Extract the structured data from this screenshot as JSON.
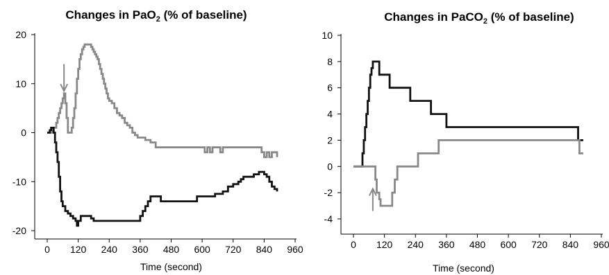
{
  "chart_data": [
    {
      "type": "line",
      "title": "Changes in PaO2 (% of baseline)",
      "title_main": "Changes in PaO",
      "title_sub": "2",
      "title_rest": " (% of baseline)",
      "xlabel": "Time (second)",
      "ylabel": "",
      "xlim": [
        0,
        960
      ],
      "ylim": [
        -20,
        20
      ],
      "xticks": [
        0,
        120,
        240,
        360,
        480,
        600,
        720,
        840,
        960
      ],
      "yticks": [
        -20,
        -10,
        0,
        10,
        20
      ],
      "grid": false,
      "annotation": {
        "type": "arrow",
        "direction": "down",
        "x": 65,
        "y_from": 14,
        "y_to": 8.5
      },
      "series": [
        {
          "color": "#888888",
          "x": [
            0,
            20,
            20,
            30,
            35,
            40,
            45,
            50,
            55,
            60,
            65,
            70,
            75,
            80,
            90,
            95,
            100,
            105,
            110,
            115,
            120,
            125,
            130,
            135,
            140,
            145,
            160,
            170,
            175,
            180,
            185,
            190,
            195,
            200,
            205,
            210,
            215,
            220,
            225,
            230,
            235,
            240,
            250,
            260,
            270,
            280,
            290,
            300,
            310,
            320,
            330,
            340,
            350,
            380,
            400,
            420,
            600,
            610,
            620,
            630,
            640,
            660,
            670,
            680,
            700,
            820,
            830,
            840,
            850,
            860,
            870,
            880,
            890
          ],
          "y": [
            0,
            0,
            1,
            1,
            2,
            3,
            4,
            5,
            6,
            7,
            8,
            6,
            3,
            0,
            0,
            1,
            3,
            5,
            8,
            11,
            13,
            15,
            16,
            17,
            17.5,
            18,
            18,
            17.5,
            17,
            16.5,
            16,
            15.5,
            15,
            14,
            13,
            12,
            11,
            10,
            9,
            8,
            7,
            6.5,
            6,
            5,
            4,
            3.5,
            3,
            2,
            1.5,
            1,
            0,
            -0.5,
            -1,
            -1.5,
            -2,
            -3,
            -3,
            -4,
            -3,
            -4,
            -3,
            -3,
            -4,
            -3,
            -3,
            -3,
            -4,
            -5,
            -4,
            -5,
            -4,
            -4,
            -5
          ],
          "width": 2.8
        },
        {
          "color": "#111111",
          "x": [
            0,
            10,
            15,
            20,
            25,
            30,
            35,
            40,
            45,
            50,
            55,
            60,
            70,
            80,
            90,
            100,
            110,
            115,
            120,
            125,
            130,
            140,
            150,
            160,
            170,
            180,
            190,
            200,
            210,
            360,
            370,
            380,
            390,
            400,
            420,
            440,
            460,
            480,
            500,
            530,
            550,
            580,
            600,
            650,
            680,
            700,
            720,
            740,
            750,
            760,
            800,
            820,
            830,
            840,
            850,
            860,
            870,
            880,
            890
          ],
          "y": [
            0,
            0.5,
            1,
            1,
            0,
            -2,
            -4,
            -6,
            -9,
            -12,
            -14,
            -15,
            -16,
            -16.5,
            -17,
            -17.5,
            -18,
            -19,
            -18,
            -18,
            -17,
            -17,
            -17,
            -17,
            -17.5,
            -18,
            -18,
            -18,
            -18,
            -17,
            -16,
            -15,
            -14,
            -13,
            -13,
            -14,
            -14,
            -14,
            -14,
            -14,
            -14,
            -13,
            -13,
            -12.5,
            -12,
            -11,
            -10.5,
            -10,
            -9.5,
            -9,
            -8.5,
            -8,
            -8,
            -8.5,
            -9,
            -10,
            -11,
            -11.5,
            -12
          ],
          "width": 2.8
        }
      ]
    },
    {
      "type": "line",
      "title": "Changes in PaCO2 (% of baseline)",
      "title_main": "Changes in PaCO",
      "title_sub": "2",
      "title_rest": " (% of baseline)",
      "xlabel": "Time (second)",
      "ylabel": "",
      "xlim": [
        0,
        960
      ],
      "ylim": [
        -4,
        10
      ],
      "xticks": [
        0,
        120,
        240,
        360,
        480,
        600,
        720,
        840,
        960
      ],
      "yticks": [
        -4,
        -2,
        0,
        2,
        4,
        6,
        8,
        10
      ],
      "grid": false,
      "annotation": {
        "type": "arrow",
        "direction": "up",
        "x": 75,
        "y_from": -3.4,
        "y_to": -1.7
      },
      "series": [
        {
          "color": "#111111",
          "x": [
            0,
            30,
            35,
            40,
            45,
            50,
            55,
            60,
            65,
            70,
            75,
            80,
            90,
            100,
            130,
            140,
            180,
            220,
            290,
            300,
            310,
            360,
            370,
            860,
            870,
            875,
            880,
            890
          ],
          "y": [
            0,
            0,
            1,
            2,
            3,
            4,
            5,
            6,
            7,
            7.5,
            8,
            8,
            8,
            7,
            7,
            6,
            6,
            5,
            5,
            4,
            4,
            3,
            3,
            3,
            2,
            2,
            2,
            2
          ],
          "width": 2.8
        },
        {
          "color": "#888888",
          "x": [
            0,
            30,
            80,
            85,
            90,
            95,
            100,
            105,
            110,
            130,
            150,
            160,
            170,
            190,
            210,
            240,
            250,
            260,
            320,
            330,
            870,
            875,
            880,
            890
          ],
          "y": [
            0,
            0,
            0,
            -1,
            -2,
            -2,
            -2.5,
            -3,
            -3,
            -3,
            -2,
            -1,
            0,
            0,
            0,
            0,
            1,
            1,
            1,
            2,
            2,
            1,
            1,
            1
          ],
          "width": 2.8
        }
      ]
    }
  ]
}
